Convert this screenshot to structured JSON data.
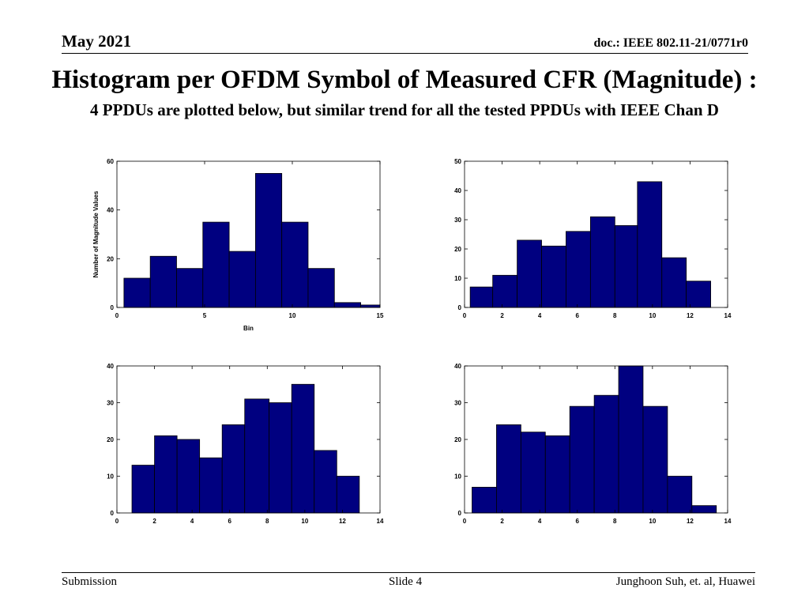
{
  "header": {
    "date": "May 2021",
    "doc_id": "doc.: IEEE 802.11-21/0771r0"
  },
  "slide": {
    "title": "Histogram per OFDM Symbol of Measured CFR (Magnitude) :",
    "subtitle": "4 PPDUs are plotted below, but similar trend for all the tested PPDUs with IEEE Chan D"
  },
  "footer": {
    "left": "Submission",
    "center": "Slide 4",
    "right": "Junghoon Suh, et. al, Huawei"
  },
  "bar_color": "#000080",
  "chart_data": [
    {
      "type": "bar",
      "xlabel": "Bin",
      "ylabel": "Number of Magnitude Values",
      "xlim": [
        0,
        15
      ],
      "ylim": [
        0,
        60
      ],
      "xticks": [
        0,
        5,
        10,
        15
      ],
      "yticks": [
        0,
        20,
        40,
        60
      ],
      "grid": false,
      "bins": [
        {
          "x0": 0.4,
          "x1": 1.9,
          "value": 12
        },
        {
          "x0": 1.9,
          "x1": 3.4,
          "value": 21
        },
        {
          "x0": 3.4,
          "x1": 4.9,
          "value": 16
        },
        {
          "x0": 4.9,
          "x1": 6.4,
          "value": 35
        },
        {
          "x0": 6.4,
          "x1": 7.9,
          "value": 23
        },
        {
          "x0": 7.9,
          "x1": 9.4,
          "value": 55
        },
        {
          "x0": 9.4,
          "x1": 10.9,
          "value": 35
        },
        {
          "x0": 10.9,
          "x1": 12.4,
          "value": 16
        },
        {
          "x0": 12.4,
          "x1": 13.9,
          "value": 2
        },
        {
          "x0": 13.9,
          "x1": 15.0,
          "value": 1
        }
      ]
    },
    {
      "type": "bar",
      "xlabel": "",
      "ylabel": "",
      "xlim": [
        0,
        14
      ],
      "ylim": [
        0,
        50
      ],
      "xticks": [
        0,
        2,
        4,
        6,
        8,
        10,
        12,
        14
      ],
      "yticks": [
        0,
        10,
        20,
        30,
        40,
        50
      ],
      "grid": false,
      "bins": [
        {
          "x0": 0.3,
          "x1": 1.5,
          "value": 7
        },
        {
          "x0": 1.5,
          "x1": 2.8,
          "value": 11
        },
        {
          "x0": 2.8,
          "x1": 4.1,
          "value": 23
        },
        {
          "x0": 4.1,
          "x1": 5.4,
          "value": 21
        },
        {
          "x0": 5.4,
          "x1": 6.7,
          "value": 26
        },
        {
          "x0": 6.7,
          "x1": 8.0,
          "value": 31
        },
        {
          "x0": 8.0,
          "x1": 9.2,
          "value": 28
        },
        {
          "x0": 9.2,
          "x1": 10.5,
          "value": 43
        },
        {
          "x0": 10.5,
          "x1": 11.8,
          "value": 17
        },
        {
          "x0": 11.8,
          "x1": 13.1,
          "value": 9
        }
      ]
    },
    {
      "type": "bar",
      "xlabel": "",
      "ylabel": "",
      "xlim": [
        0,
        14
      ],
      "ylim": [
        0,
        40
      ],
      "xticks": [
        0,
        2,
        4,
        6,
        8,
        10,
        12,
        14
      ],
      "yticks": [
        0,
        10,
        20,
        30,
        40
      ],
      "grid": false,
      "bins": [
        {
          "x0": 0.8,
          "x1": 2.0,
          "value": 13
        },
        {
          "x0": 2.0,
          "x1": 3.2,
          "value": 21
        },
        {
          "x0": 3.2,
          "x1": 4.4,
          "value": 20
        },
        {
          "x0": 4.4,
          "x1": 5.6,
          "value": 15
        },
        {
          "x0": 5.6,
          "x1": 6.8,
          "value": 24
        },
        {
          "x0": 6.8,
          "x1": 8.1,
          "value": 31
        },
        {
          "x0": 8.1,
          "x1": 9.3,
          "value": 30
        },
        {
          "x0": 9.3,
          "x1": 10.5,
          "value": 35
        },
        {
          "x0": 10.5,
          "x1": 11.7,
          "value": 17
        },
        {
          "x0": 11.7,
          "x1": 12.9,
          "value": 10
        }
      ]
    },
    {
      "type": "bar",
      "xlabel": "",
      "ylabel": "",
      "xlim": [
        0,
        14
      ],
      "ylim": [
        0,
        40
      ],
      "xticks": [
        0,
        2,
        4,
        6,
        8,
        10,
        12,
        14
      ],
      "yticks": [
        0,
        10,
        20,
        30,
        40
      ],
      "grid": false,
      "bins": [
        {
          "x0": 0.4,
          "x1": 1.7,
          "value": 7
        },
        {
          "x0": 1.7,
          "x1": 3.0,
          "value": 24
        },
        {
          "x0": 3.0,
          "x1": 4.3,
          "value": 22
        },
        {
          "x0": 4.3,
          "x1": 5.6,
          "value": 21
        },
        {
          "x0": 5.6,
          "x1": 6.9,
          "value": 29
        },
        {
          "x0": 6.9,
          "x1": 8.2,
          "value": 32
        },
        {
          "x0": 8.2,
          "x1": 9.5,
          "value": 40
        },
        {
          "x0": 9.5,
          "x1": 10.8,
          "value": 29
        },
        {
          "x0": 10.8,
          "x1": 12.1,
          "value": 10
        },
        {
          "x0": 12.1,
          "x1": 13.4,
          "value": 2
        }
      ]
    }
  ]
}
